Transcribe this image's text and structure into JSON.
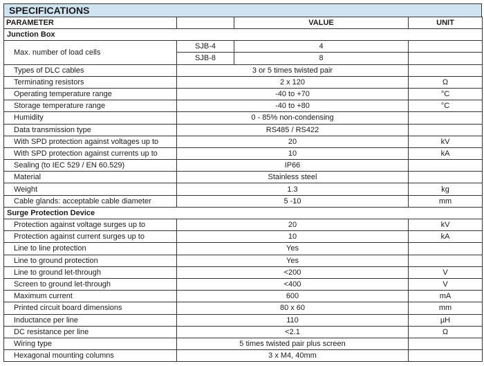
{
  "title": "SPECIFICATIONS",
  "header": {
    "parameter": "PARAMETER",
    "value": "VALUE",
    "unit": "UNIT"
  },
  "sections": [
    {
      "name": "Junction Box",
      "rows": [
        {
          "param": "Max. number of load cells",
          "variants": [
            {
              "model": "SJB-4",
              "value": "4",
              "unit": ""
            },
            {
              "model": "SJB-8",
              "value": "8",
              "unit": ""
            }
          ]
        },
        {
          "param": "Types of DLC cables",
          "value": "3 or 5 times twisted pair",
          "unit": ""
        },
        {
          "param": "Terminating resistors",
          "value": "2 x 120",
          "unit": "Ω"
        },
        {
          "param": "Operating temperature range",
          "value": "-40 to +70",
          "unit": "°C"
        },
        {
          "param": "Storage temperature range",
          "value": "-40 to +80",
          "unit": "°C"
        },
        {
          "param": "Humidity",
          "value": "0 - 85% non-condensing",
          "unit": ""
        },
        {
          "param": "Data transmission type",
          "value": "RS485 / RS422",
          "unit": ""
        },
        {
          "param": "With SPD protection against voltages up to",
          "value": "20",
          "unit": "kV"
        },
        {
          "param": "With SPD protection against currents up to",
          "value": "10",
          "unit": "kA"
        },
        {
          "param": "Sealing (to IEC 529 / EN 60.529)",
          "value": "IP66",
          "unit": ""
        },
        {
          "param": "Material",
          "value": "Stainless steel",
          "unit": ""
        },
        {
          "param": "Weight",
          "value": "1.3",
          "unit": "kg"
        },
        {
          "param": "Cable glands: acceptable cable diameter",
          "value": "5 -10",
          "unit": "mm"
        }
      ]
    },
    {
      "name": "Surge Protection Device",
      "rows": [
        {
          "param": "Protection against voltage surges up to",
          "value": "20",
          "unit": "kV"
        },
        {
          "param": "Protection against current surges up to",
          "value": "10",
          "unit": "kA"
        },
        {
          "param": "Line to line protection",
          "value": "Yes",
          "unit": ""
        },
        {
          "param": "Line to ground protection",
          "value": "Yes",
          "unit": ""
        },
        {
          "param": "Line to ground let-through",
          "value": "<200",
          "unit": "V"
        },
        {
          "param": "Screen to ground let-through",
          "value": "<400",
          "unit": "V"
        },
        {
          "param": "Maximum current",
          "value": "600",
          "unit": "mA"
        },
        {
          "param": "Printed circuit board dimensions",
          "value": "80 x 60",
          "unit": "mm"
        },
        {
          "param": "Inductance per line",
          "value": "110",
          "unit": "µH"
        },
        {
          "param": "DC resistance per line",
          "value": "<2.1",
          "unit": "Ω"
        },
        {
          "param": "Wiring type",
          "value": "5 times twisted pair plus screen",
          "unit": ""
        },
        {
          "param": "Hexagonal mounting columns",
          "value": "3 x M4, 40mm",
          "unit": ""
        }
      ]
    }
  ]
}
